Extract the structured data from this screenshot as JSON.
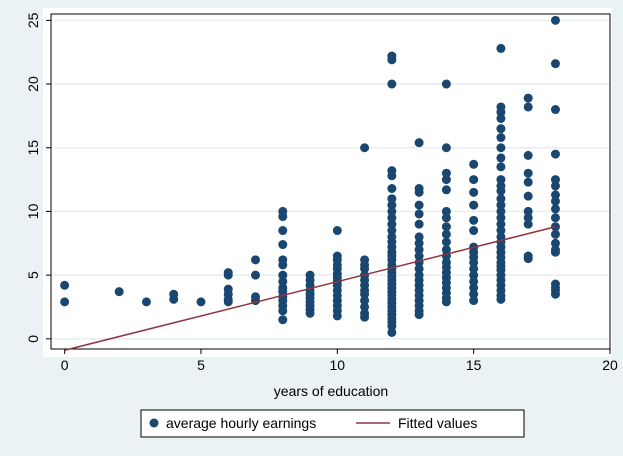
{
  "chart_data": {
    "type": "scatter",
    "title": "",
    "xlabel": "years of education",
    "ylabel": "",
    "xlim": [
      -0.5,
      20
    ],
    "ylim": [
      -0.8,
      25.5
    ],
    "xticks": [
      0,
      5,
      10,
      15,
      20
    ],
    "yticks": [
      0,
      5,
      10,
      15,
      20,
      25
    ],
    "grid": "horizontal",
    "legend_position": "bottom",
    "series": [
      {
        "name": "average hourly earnings",
        "kind": "scatter",
        "color": "#1a476f",
        "points": [
          [
            0,
            4.2
          ],
          [
            0,
            2.9
          ],
          [
            2,
            3.7
          ],
          [
            3,
            2.9
          ],
          [
            4,
            3.5
          ],
          [
            4,
            3.1
          ],
          [
            5,
            2.9
          ],
          [
            6,
            5.2
          ],
          [
            6,
            5.0
          ],
          [
            6,
            3.9
          ],
          [
            6,
            3.5
          ],
          [
            6,
            3.1
          ],
          [
            6,
            2.9
          ],
          [
            7,
            6.2
          ],
          [
            7,
            5.0
          ],
          [
            7,
            3.3
          ],
          [
            7,
            3.0
          ],
          [
            8,
            10.0
          ],
          [
            8,
            9.6
          ],
          [
            8,
            8.5
          ],
          [
            8,
            7.4
          ],
          [
            8,
            6.2
          ],
          [
            8,
            5.8
          ],
          [
            8,
            5.0
          ],
          [
            8,
            4.5
          ],
          [
            8,
            4.0
          ],
          [
            8,
            3.7
          ],
          [
            8,
            3.3
          ],
          [
            8,
            3.0
          ],
          [
            8,
            2.6
          ],
          [
            8,
            2.2
          ],
          [
            8,
            1.5
          ],
          [
            9,
            5.0
          ],
          [
            9,
            4.6
          ],
          [
            9,
            4.2
          ],
          [
            9,
            3.8
          ],
          [
            9,
            3.5
          ],
          [
            9,
            3.2
          ],
          [
            9,
            2.9
          ],
          [
            9,
            2.6
          ],
          [
            9,
            2.3
          ],
          [
            9,
            2.0
          ],
          [
            10,
            8.5
          ],
          [
            10,
            6.5
          ],
          [
            10,
            6.2
          ],
          [
            10,
            5.8
          ],
          [
            10,
            5.5
          ],
          [
            10,
            5.1
          ],
          [
            10,
            4.8
          ],
          [
            10,
            4.5
          ],
          [
            10,
            4.2
          ],
          [
            10,
            3.8
          ],
          [
            10,
            3.4
          ],
          [
            10,
            3.0
          ],
          [
            10,
            2.6
          ],
          [
            10,
            2.2
          ],
          [
            10,
            1.8
          ],
          [
            11,
            15.0
          ],
          [
            11,
            6.2
          ],
          [
            11,
            5.8
          ],
          [
            11,
            5.5
          ],
          [
            11,
            5.0
          ],
          [
            11,
            4.6
          ],
          [
            11,
            4.2
          ],
          [
            11,
            3.8
          ],
          [
            11,
            3.5
          ],
          [
            11,
            3.0
          ],
          [
            11,
            2.5
          ],
          [
            11,
            2.0
          ],
          [
            11,
            1.7
          ],
          [
            12,
            22.2
          ],
          [
            12,
            21.9
          ],
          [
            12,
            20.0
          ],
          [
            12,
            13.2
          ],
          [
            12,
            12.8
          ],
          [
            12,
            11.8
          ],
          [
            12,
            11.0
          ],
          [
            12,
            10.5
          ],
          [
            12,
            10.0
          ],
          [
            12,
            9.5
          ],
          [
            12,
            9.0
          ],
          [
            12,
            8.5
          ],
          [
            12,
            8.0
          ],
          [
            12,
            7.6
          ],
          [
            12,
            7.2
          ],
          [
            12,
            6.8
          ],
          [
            12,
            6.5
          ],
          [
            12,
            6.2
          ],
          [
            12,
            5.8
          ],
          [
            12,
            5.5
          ],
          [
            12,
            5.2
          ],
          [
            12,
            4.9
          ],
          [
            12,
            4.6
          ],
          [
            12,
            4.3
          ],
          [
            12,
            4.0
          ],
          [
            12,
            3.7
          ],
          [
            12,
            3.4
          ],
          [
            12,
            3.1
          ],
          [
            12,
            2.8
          ],
          [
            12,
            2.5
          ],
          [
            12,
            2.2
          ],
          [
            12,
            1.9
          ],
          [
            12,
            1.6
          ],
          [
            12,
            1.3
          ],
          [
            12,
            1.0
          ],
          [
            12,
            0.5
          ],
          [
            13,
            15.4
          ],
          [
            13,
            11.8
          ],
          [
            13,
            11.5
          ],
          [
            13,
            10.5
          ],
          [
            13,
            9.8
          ],
          [
            13,
            9.0
          ],
          [
            13,
            8.0
          ],
          [
            13,
            7.5
          ],
          [
            13,
            7.0
          ],
          [
            13,
            6.5
          ],
          [
            13,
            6.0
          ],
          [
            13,
            5.5
          ],
          [
            13,
            5.0
          ],
          [
            13,
            4.6
          ],
          [
            13,
            4.2
          ],
          [
            13,
            3.8
          ],
          [
            13,
            3.4
          ],
          [
            13,
            3.0
          ],
          [
            13,
            2.6
          ],
          [
            13,
            2.2
          ],
          [
            13,
            1.9
          ],
          [
            14,
            20.0
          ],
          [
            14,
            15.0
          ],
          [
            14,
            13.0
          ],
          [
            14,
            12.5
          ],
          [
            14,
            11.7
          ],
          [
            14,
            10.0
          ],
          [
            14,
            9.5
          ],
          [
            14,
            8.8
          ],
          [
            14,
            8.2
          ],
          [
            14,
            7.6
          ],
          [
            14,
            7.0
          ],
          [
            14,
            6.5
          ],
          [
            14,
            6.0
          ],
          [
            14,
            5.6
          ],
          [
            14,
            5.2
          ],
          [
            14,
            4.8
          ],
          [
            14,
            4.4
          ],
          [
            14,
            4.0
          ],
          [
            14,
            3.6
          ],
          [
            14,
            3.2
          ],
          [
            14,
            2.9
          ],
          [
            15,
            13.7
          ],
          [
            15,
            12.5
          ],
          [
            15,
            11.5
          ],
          [
            15,
            10.5
          ],
          [
            15,
            9.3
          ],
          [
            15,
            8.5
          ],
          [
            15,
            7.2
          ],
          [
            15,
            6.8
          ],
          [
            15,
            6.4
          ],
          [
            15,
            6.0
          ],
          [
            15,
            5.5
          ],
          [
            15,
            5.0
          ],
          [
            15,
            4.5
          ],
          [
            15,
            4.0
          ],
          [
            15,
            3.5
          ],
          [
            15,
            3.0
          ],
          [
            16,
            22.8
          ],
          [
            16,
            18.2
          ],
          [
            16,
            17.8
          ],
          [
            16,
            17.3
          ],
          [
            16,
            16.5
          ],
          [
            16,
            15.8
          ],
          [
            16,
            15.0
          ],
          [
            16,
            14.2
          ],
          [
            16,
            13.5
          ],
          [
            16,
            12.5
          ],
          [
            16,
            12.0
          ],
          [
            16,
            11.6
          ],
          [
            16,
            11.0
          ],
          [
            16,
            10.5
          ],
          [
            16,
            10.0
          ],
          [
            16,
            9.5
          ],
          [
            16,
            9.0
          ],
          [
            16,
            8.5
          ],
          [
            16,
            8.0
          ],
          [
            16,
            7.6
          ],
          [
            16,
            7.2
          ],
          [
            16,
            6.8
          ],
          [
            16,
            6.4
          ],
          [
            16,
            6.0
          ],
          [
            16,
            5.7
          ],
          [
            16,
            5.4
          ],
          [
            16,
            5.0
          ],
          [
            16,
            4.6
          ],
          [
            16,
            4.2
          ],
          [
            16,
            3.8
          ],
          [
            16,
            3.4
          ],
          [
            16,
            3.1
          ],
          [
            17,
            18.9
          ],
          [
            17,
            18.2
          ],
          [
            17,
            14.4
          ],
          [
            17,
            13.0
          ],
          [
            17,
            12.3
          ],
          [
            17,
            11.2
          ],
          [
            17,
            10.0
          ],
          [
            17,
            9.5
          ],
          [
            17,
            9.0
          ],
          [
            17,
            6.5
          ],
          [
            17,
            6.3
          ],
          [
            18,
            25.0
          ],
          [
            18,
            21.6
          ],
          [
            18,
            18.0
          ],
          [
            18,
            14.5
          ],
          [
            18,
            12.5
          ],
          [
            18,
            12.0
          ],
          [
            18,
            11.3
          ],
          [
            18,
            10.8
          ],
          [
            18,
            10.2
          ],
          [
            18,
            9.5
          ],
          [
            18,
            8.8
          ],
          [
            18,
            8.2
          ],
          [
            18,
            7.5
          ],
          [
            18,
            7.0
          ],
          [
            18,
            6.8
          ],
          [
            18,
            4.3
          ],
          [
            18,
            4.0
          ],
          [
            18,
            3.8
          ],
          [
            18,
            3.5
          ]
        ]
      },
      {
        "name": "Fitted values",
        "kind": "line",
        "color": "#90353b",
        "points": [
          [
            0,
            -0.9
          ],
          [
            18,
            8.8
          ]
        ]
      }
    ]
  }
}
